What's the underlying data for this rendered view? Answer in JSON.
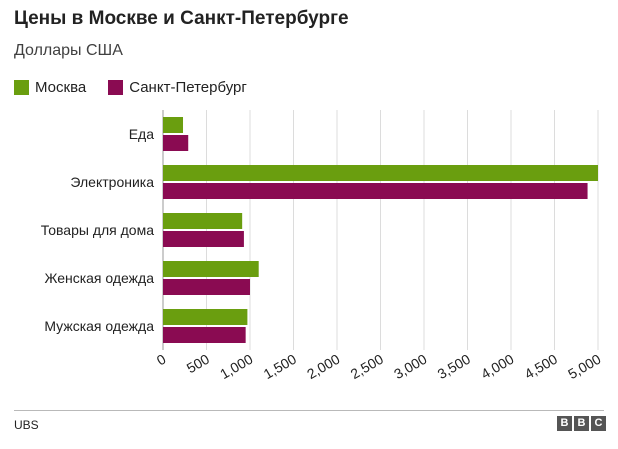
{
  "header": {
    "title": "Цены в Москве и Санкт-Петербурге",
    "subtitle": "Доллары США"
  },
  "footer": {
    "source": "UBS",
    "logo_letters": [
      "B",
      "B",
      "C"
    ]
  },
  "colors": {
    "moscow": "#6a9e0f",
    "spb": "#8a0b52",
    "grid": "#dcdcdc",
    "axis": "#999999",
    "text": "#222222"
  },
  "chart_data": {
    "type": "bar",
    "orientation": "horizontal",
    "title": "Цены в Москве и Санкт-Петербурге",
    "subtitle": "Доллары США",
    "xlabel": "",
    "ylabel": "",
    "categories": [
      "Еда",
      "Электроника",
      "Товары для дома",
      "Женская одежда",
      "Мужская одежда"
    ],
    "series": [
      {
        "name": "Москва",
        "color": "#6a9e0f",
        "values": [
          230,
          5000,
          910,
          1100,
          970
        ]
      },
      {
        "name": "Санкт-Петербург",
        "color": "#8a0b52",
        "values": [
          290,
          4880,
          930,
          1000,
          950
        ]
      }
    ],
    "xlim": [
      0,
      5000
    ],
    "xticks": [
      0,
      500,
      1000,
      1500,
      2000,
      2500,
      3000,
      3500,
      4000,
      4500,
      5000
    ],
    "xtick_labels": [
      "0",
      "500",
      "1,000",
      "1,500",
      "2,000",
      "2,500",
      "3,000",
      "3,500",
      "4,000",
      "4,500",
      "5,000"
    ],
    "grid": true,
    "legend": "top-left"
  }
}
